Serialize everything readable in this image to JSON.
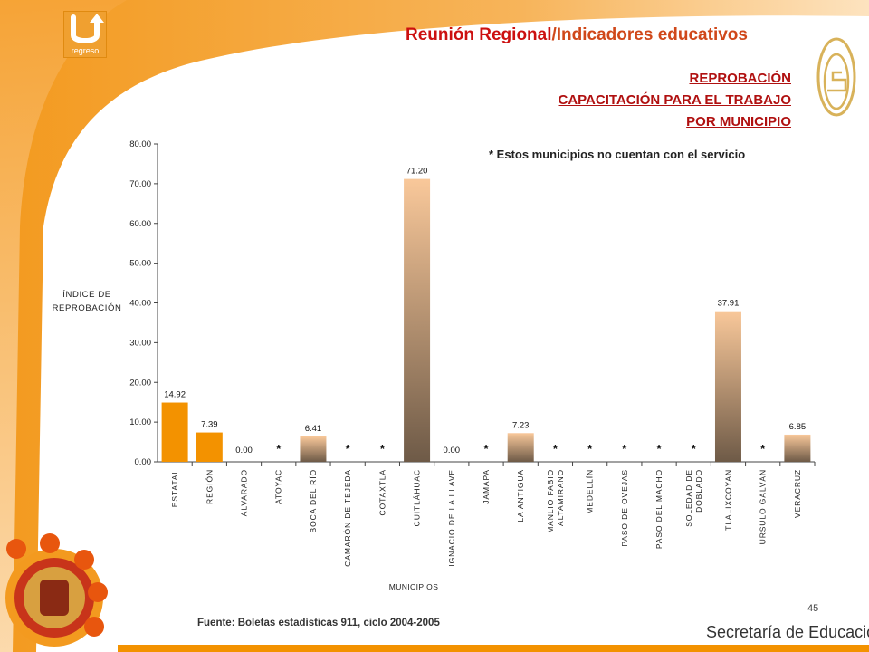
{
  "header": {
    "title_part1": "Reunión Regional",
    "title_part2": "/Indicadores educativos",
    "back_label": "regreso"
  },
  "subtitle_lines": [
    "REPROBACIÓN",
    "CAPACITACIÓN PARA EL TRABAJO",
    "POR MUNICIPIO"
  ],
  "note": "* Estos municipios no cuentan con el servicio",
  "source": "Fuente: Boletas estadísticas 911, ciclo 2004-2005",
  "page_number": "45",
  "footer": {
    "org": "Secretaría de Educación"
  },
  "colors": {
    "accent_orange": "#f39200",
    "title_red": "#cc1010",
    "bar_top": "#f9c89a",
    "bar_bottom": "#6e5a47"
  },
  "chart_data": {
    "type": "bar",
    "ylabel_lines": [
      "ÍNDICE DE",
      "REPROBACIÓN"
    ],
    "xlabel": "MUNICIPIOS",
    "ylim": [
      0,
      80
    ],
    "yticks": [
      "0.00",
      "10.00",
      "20.00",
      "30.00",
      "40.00",
      "50.00",
      "60.00",
      "70.00",
      "80.00"
    ],
    "categories": [
      [
        "ESTATAL"
      ],
      [
        "REGIÓN"
      ],
      [
        "ALVARADO"
      ],
      [
        "ATOYAC"
      ],
      [
        "BOCA DEL RÍO"
      ],
      [
        "CAMARÓN DE TEJEDA"
      ],
      [
        "COTAXTLA"
      ],
      [
        "CUITLÁHUAC"
      ],
      [
        "IGNACIO DE LA LLAVE"
      ],
      [
        "JAMAPA"
      ],
      [
        "LA ANTIGUA"
      ],
      [
        "MANLIO FABIO",
        "ALTAMIRANO"
      ],
      [
        "MEDELLÍN"
      ],
      [
        "PASO DE OVEJAS"
      ],
      [
        "PASO DEL MACHO"
      ],
      [
        "SOLEDAD DE",
        "DOBLADO"
      ],
      [
        "TLALIXCOYAN"
      ],
      [
        "ÚRSULO GALVÁN"
      ],
      [
        "VERACRUZ"
      ]
    ],
    "values": [
      14.92,
      7.39,
      0.0,
      null,
      6.41,
      null,
      null,
      71.2,
      0.0,
      null,
      7.23,
      null,
      null,
      null,
      null,
      null,
      37.91,
      null,
      6.85
    ],
    "labels": [
      "14.92",
      "7.39",
      "0.00",
      "*",
      "6.41",
      "*",
      "*",
      "71.20",
      "0.00",
      "*",
      "7.23",
      "*",
      "*",
      "*",
      "*",
      "*",
      "37.91",
      "*",
      "6.85"
    ],
    "highlight": [
      true,
      true,
      false,
      false,
      false,
      false,
      false,
      false,
      false,
      false,
      false,
      false,
      false,
      false,
      false,
      false,
      false,
      false,
      false
    ]
  }
}
